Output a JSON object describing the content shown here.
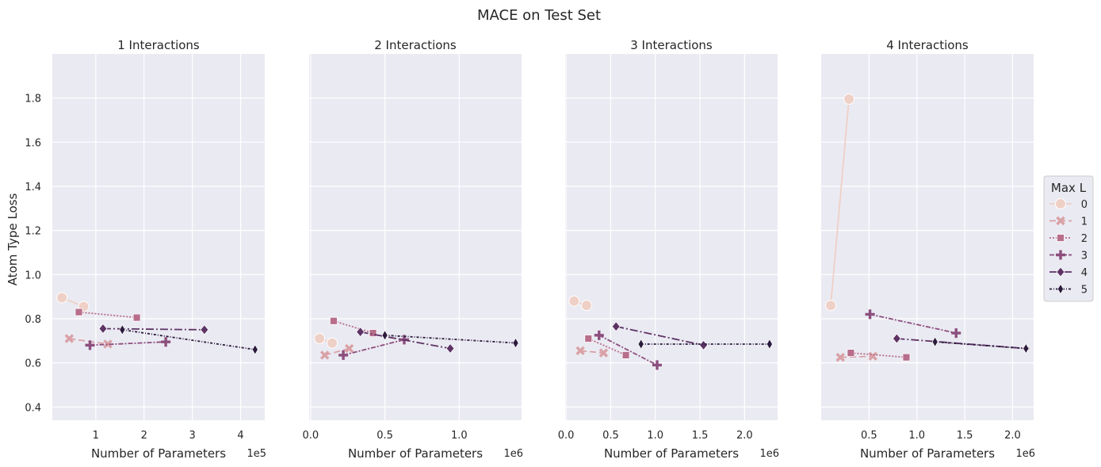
{
  "figure": {
    "title": "MACE on Test Set",
    "ylabel": "Atom Type Loss",
    "legend_title": "Max L",
    "background": "#eaeaf2",
    "grid_color": "#ffffff"
  },
  "series_styles": [
    {
      "name": "0",
      "color": "#efd0c6",
      "marker": "circle",
      "dash": ""
    },
    {
      "name": "1",
      "color": "#d9a1a6",
      "marker": "x",
      "dash": "8,4"
    },
    {
      "name": "2",
      "color": "#b76e8a",
      "marker": "square",
      "dash": "2,2"
    },
    {
      "name": "3",
      "color": "#8c4e7d",
      "marker": "plus",
      "dash": "6,2,2,2"
    },
    {
      "name": "4",
      "color": "#5e3365",
      "marker": "diamond",
      "dash": "10,3,2,3"
    },
    {
      "name": "5",
      "color": "#2b1a3c",
      "marker": "thin-diamond",
      "dash": "3,2,1,2"
    }
  ],
  "chart_data": [
    {
      "type": "line",
      "title": "1 Interactions",
      "xlabel": "Number of Parameters",
      "x_scale_label": "1e5",
      "xlim": [
        0.1,
        4.5
      ],
      "xticks": [
        1,
        2,
        3,
        4
      ],
      "xtick_labels": [
        "1",
        "2",
        "3",
        "4"
      ],
      "ylim": [
        0.34,
        2.0
      ],
      "yticks": [
        0.4,
        0.6,
        0.8,
        1.0,
        1.2,
        1.4,
        1.6,
        1.8
      ],
      "ytick_labels": [
        "0.4",
        "0.6",
        "0.8",
        "1.0",
        "1.2",
        "1.4",
        "1.6",
        "1.8"
      ],
      "grid": true,
      "series": [
        {
          "name": "0",
          "points": [
            [
              0.3,
              0.895
            ],
            [
              0.75,
              0.855
            ]
          ]
        },
        {
          "name": "1",
          "points": [
            [
              0.45,
              0.71
            ],
            [
              1.25,
              0.685
            ]
          ]
        },
        {
          "name": "2",
          "points": [
            [
              0.65,
              0.83
            ],
            [
              1.85,
              0.805
            ]
          ]
        },
        {
          "name": "3",
          "points": [
            [
              0.88,
              0.68
            ],
            [
              2.45,
              0.695
            ]
          ]
        },
        {
          "name": "4",
          "points": [
            [
              1.15,
              0.755
            ],
            [
              3.25,
              0.75
            ]
          ]
        },
        {
          "name": "5",
          "points": [
            [
              1.55,
              0.75
            ],
            [
              4.3,
              0.66
            ]
          ]
        }
      ]
    },
    {
      "type": "line",
      "title": "2 Interactions",
      "xlabel": "Number of Parameters",
      "x_scale_label": "1e6",
      "xlim": [
        -0.01,
        1.42
      ],
      "xticks": [
        0.0,
        0.5,
        1.0
      ],
      "xtick_labels": [
        "0.0",
        "0.5",
        "1.0"
      ],
      "ylim": [
        0.34,
        2.0
      ],
      "yticks": [
        0.4,
        0.6,
        0.8,
        1.0,
        1.2,
        1.4,
        1.6,
        1.8
      ],
      "grid": true,
      "series": [
        {
          "name": "0",
          "points": [
            [
              0.06,
              0.71
            ],
            [
              0.145,
              0.69
            ]
          ]
        },
        {
          "name": "1",
          "points": [
            [
              0.095,
              0.635
            ],
            [
              0.26,
              0.665
            ]
          ]
        },
        {
          "name": "2",
          "points": [
            [
              0.155,
              0.79
            ],
            [
              0.42,
              0.735
            ]
          ]
        },
        {
          "name": "3",
          "points": [
            [
              0.22,
              0.635
            ],
            [
              0.63,
              0.705
            ]
          ]
        },
        {
          "name": "4",
          "points": [
            [
              0.335,
              0.74
            ],
            [
              0.94,
              0.665
            ]
          ]
        },
        {
          "name": "5",
          "points": [
            [
              0.5,
              0.725
            ],
            [
              1.38,
              0.69
            ]
          ]
        }
      ]
    },
    {
      "type": "line",
      "title": "3 Interactions",
      "xlabel": "Number of Parameters",
      "x_scale_label": "1e6",
      "xlim": [
        -0.01,
        2.37
      ],
      "xticks": [
        0.0,
        0.5,
        1.0,
        1.5,
        2.0
      ],
      "xtick_labels": [
        "0.0",
        "0.5",
        "1.0",
        "1.5",
        "2.0"
      ],
      "ylim": [
        0.34,
        2.0
      ],
      "yticks": [
        0.4,
        0.6,
        0.8,
        1.0,
        1.2,
        1.4,
        1.6,
        1.8
      ],
      "grid": true,
      "series": [
        {
          "name": "0",
          "points": [
            [
              0.09,
              0.88
            ],
            [
              0.23,
              0.86
            ]
          ]
        },
        {
          "name": "1",
          "points": [
            [
              0.16,
              0.655
            ],
            [
              0.42,
              0.645
            ]
          ]
        },
        {
          "name": "2",
          "points": [
            [
              0.25,
              0.71
            ],
            [
              0.67,
              0.635
            ]
          ]
        },
        {
          "name": "3",
          "points": [
            [
              0.37,
              0.725
            ],
            [
              1.02,
              0.59
            ]
          ]
        },
        {
          "name": "4",
          "points": [
            [
              0.56,
              0.765
            ],
            [
              1.54,
              0.68
            ]
          ]
        },
        {
          "name": "5",
          "points": [
            [
              0.84,
              0.685
            ],
            [
              2.28,
              0.685
            ]
          ]
        }
      ]
    },
    {
      "type": "line",
      "title": "4 Interactions",
      "xlabel": "Number of Parameters",
      "x_scale_label": "1e6",
      "xlim": [
        0.0,
        2.22
      ],
      "xticks": [
        0.5,
        1.0,
        1.5,
        2.0
      ],
      "xtick_labels": [
        "0.5",
        "1.0",
        "1.5",
        "2.0"
      ],
      "ylim": [
        0.34,
        2.0
      ],
      "yticks": [
        0.4,
        0.6,
        0.8,
        1.0,
        1.2,
        1.4,
        1.6,
        1.8
      ],
      "grid": true,
      "series": [
        {
          "name": "0",
          "points": [
            [
              0.1,
              0.86
            ],
            [
              0.29,
              1.795
            ]
          ]
        },
        {
          "name": "1",
          "points": [
            [
              0.2,
              0.625
            ],
            [
              0.54,
              0.63
            ]
          ]
        },
        {
          "name": "2",
          "points": [
            [
              0.31,
              0.645
            ],
            [
              0.89,
              0.625
            ]
          ]
        },
        {
          "name": "3",
          "points": [
            [
              0.51,
              0.82
            ],
            [
              1.41,
              0.735
            ]
          ]
        },
        {
          "name": "4",
          "points": [
            [
              0.79,
              0.71
            ],
            [
              2.14,
              0.665
            ]
          ]
        },
        {
          "name": "5",
          "points": [
            [
              1.19,
              0.695
            ],
            [
              2.14,
              0.665
            ]
          ]
        }
      ]
    }
  ]
}
